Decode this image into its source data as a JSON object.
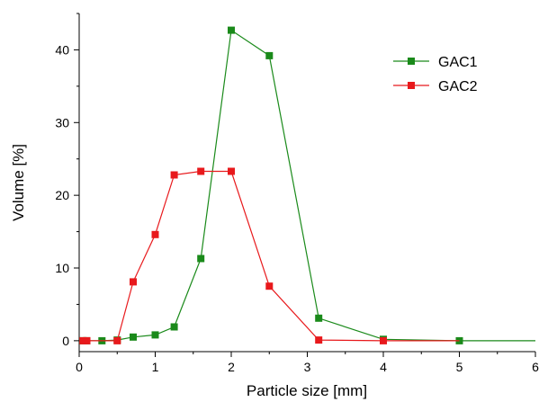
{
  "chart_data": {
    "type": "line",
    "title": "",
    "xlabel": "Particle size [mm]",
    "ylabel": "Volume [%]",
    "xlim": [
      0,
      6
    ],
    "ylim": [
      -1.5,
      45
    ],
    "x_ticks": [
      0,
      1,
      2,
      3,
      4,
      5,
      6
    ],
    "x_tick_labels": [
      "0",
      "1",
      "2",
      "3",
      "4",
      "5",
      "6"
    ],
    "y_ticks": [
      0,
      10,
      20,
      30,
      40
    ],
    "y_tick_labels": [
      "0",
      "10",
      "20",
      "30",
      "40"
    ],
    "grid": false,
    "legend_position": "top-right",
    "marker": "square",
    "series": [
      {
        "name": "GAC1",
        "color": "#1a8a1a",
        "x": [
          0.05,
          0.1,
          0.3,
          0.5,
          0.71,
          1.0,
          1.25,
          1.6,
          2.0,
          2.5,
          3.15,
          4.0,
          5.0,
          6.0
        ],
        "y": [
          0.0,
          0.0,
          0.0,
          0.1,
          0.5,
          0.8,
          1.9,
          11.3,
          42.7,
          39.2,
          3.1,
          0.2,
          0.0,
          0.0
        ],
        "markers": [
          true,
          true,
          true,
          true,
          true,
          true,
          true,
          true,
          true,
          true,
          true,
          true,
          true,
          false
        ]
      },
      {
        "name": "GAC2",
        "color": "#e8191c",
        "x": [
          0.05,
          0.1,
          0.3,
          0.5,
          0.71,
          1.0,
          1.25,
          1.6,
          2.0,
          2.5,
          3.15,
          4.0,
          5.0
        ],
        "y": [
          0.0,
          0.0,
          0.0,
          0.0,
          8.1,
          14.6,
          22.8,
          23.3,
          23.3,
          7.5,
          0.1,
          0.0,
          0.0
        ],
        "markers": [
          true,
          true,
          false,
          true,
          true,
          true,
          true,
          true,
          true,
          true,
          true,
          true,
          false
        ]
      }
    ]
  }
}
